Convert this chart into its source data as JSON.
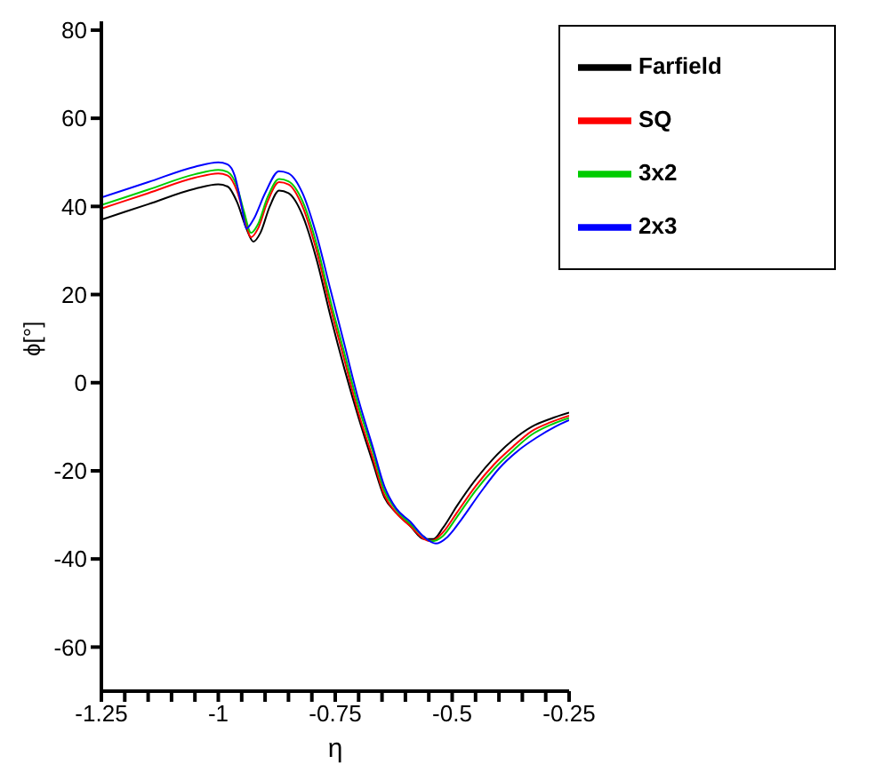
{
  "chart_data": {
    "type": "line",
    "xlabel": "η",
    "ylabel": "ϕ[°]",
    "xlim": [
      -1.25,
      -0.25
    ],
    "ylim": [
      -70,
      82
    ],
    "xticks": [
      -1.25,
      {
        "value": -1.2,
        "label": null
      },
      {
        "value": -1.15,
        "label": null
      },
      {
        "value": -1.1,
        "label": null
      },
      {
        "value": -1.05,
        "label": null
      },
      -1,
      {
        "value": -0.95,
        "label": null
      },
      {
        "value": -0.9,
        "label": null
      },
      {
        "value": -0.85,
        "label": null
      },
      {
        "value": -0.8,
        "label": null
      },
      -0.75,
      {
        "value": -0.7,
        "label": null
      },
      {
        "value": -0.65,
        "label": null
      },
      {
        "value": -0.6,
        "label": null
      },
      {
        "value": -0.55,
        "label": null
      },
      -0.5,
      {
        "value": -0.45,
        "label": null
      },
      {
        "value": -0.4,
        "label": null
      },
      {
        "value": -0.35,
        "label": null
      },
      {
        "value": -0.3,
        "label": null
      },
      -0.25
    ],
    "yticks": [
      -60,
      -40,
      -20,
      0,
      20,
      40,
      60,
      80
    ],
    "legend": "top right",
    "grid": false,
    "marker": "none",
    "line_style": "solid",
    "series": [
      {
        "name": "Farfield",
        "color": "#000000",
        "x": [
          -1.25,
          -1.15,
          -1.05,
          -1.0,
          -0.98,
          -0.96,
          -0.94,
          -0.925,
          -0.91,
          -0.89,
          -0.87,
          -0.85,
          -0.82,
          -0.79,
          -0.76,
          -0.73,
          -0.7,
          -0.67,
          -0.645,
          -0.62,
          -0.59,
          -0.56,
          -0.54,
          -0.52,
          -0.49,
          -0.45,
          -0.41,
          -0.37,
          -0.33,
          -0.29,
          -0.25
        ],
        "values": [
          37,
          40.5,
          44,
          45,
          44.5,
          41,
          35,
          32,
          34,
          40,
          43.6,
          43,
          38,
          28,
          15,
          3,
          -8,
          -18,
          -26,
          -29.5,
          -32.5,
          -35.5,
          -35.5,
          -33,
          -28,
          -22,
          -17,
          -13,
          -10,
          -8.2,
          -6.8
        ]
      },
      {
        "name": "SQ",
        "color": "#ff0000",
        "x": [
          -1.25,
          -1.15,
          -1.05,
          -1.0,
          -0.98,
          -0.96,
          -0.945,
          -0.93,
          -0.915,
          -0.895,
          -0.87,
          -0.85,
          -0.82,
          -0.79,
          -0.76,
          -0.73,
          -0.7,
          -0.67,
          -0.645,
          -0.62,
          -0.59,
          -0.56,
          -0.545,
          -0.52,
          -0.49,
          -0.45,
          -0.41,
          -0.37,
          -0.33,
          -0.29,
          -0.25
        ],
        "values": [
          39.5,
          43,
          46.5,
          47.5,
          47,
          43.5,
          38,
          33,
          35,
          41,
          45.5,
          45,
          40,
          30,
          17,
          5,
          -7,
          -17,
          -25.5,
          -29.5,
          -32.5,
          -35.5,
          -36,
          -34,
          -29.5,
          -23.5,
          -18.5,
          -14.5,
          -11,
          -9,
          -7.5
        ]
      },
      {
        "name": "3x2",
        "color": "#00cc00",
        "x": [
          -1.25,
          -1.15,
          -1.05,
          -1.0,
          -0.98,
          -0.96,
          -0.945,
          -0.93,
          -0.915,
          -0.895,
          -0.87,
          -0.85,
          -0.82,
          -0.79,
          -0.76,
          -0.73,
          -0.7,
          -0.67,
          -0.645,
          -0.62,
          -0.59,
          -0.56,
          -0.545,
          -0.52,
          -0.49,
          -0.45,
          -0.41,
          -0.37,
          -0.33,
          -0.29,
          -0.25
        ],
        "values": [
          40.3,
          43.8,
          47.3,
          48.3,
          47.8,
          44.5,
          38.8,
          34,
          36,
          42,
          46.2,
          45.7,
          41.2,
          31.5,
          18.5,
          6.5,
          -5.5,
          -15.5,
          -24.5,
          -28.8,
          -32,
          -35,
          -36,
          -34.8,
          -30.5,
          -24.5,
          -19.5,
          -15.4,
          -11.8,
          -9.6,
          -8
        ]
      },
      {
        "name": "2x3",
        "color": "#0000ff",
        "x": [
          -1.25,
          -1.15,
          -1.05,
          -1.0,
          -0.98,
          -0.965,
          -0.95,
          -0.94,
          -0.925,
          -0.9,
          -0.87,
          -0.85,
          -0.82,
          -0.79,
          -0.76,
          -0.73,
          -0.7,
          -0.67,
          -0.645,
          -0.62,
          -0.59,
          -0.56,
          -0.535,
          -0.51,
          -0.48,
          -0.44,
          -0.4,
          -0.36,
          -0.32,
          -0.28,
          -0.25
        ],
        "values": [
          42,
          45.5,
          49,
          50,
          49.5,
          47,
          40,
          35,
          37,
          43,
          48,
          47.5,
          43,
          33.5,
          21,
          8.5,
          -4,
          -14.5,
          -23.5,
          -28.5,
          -31.5,
          -35,
          -36.5,
          -35,
          -31,
          -25,
          -19.5,
          -15.5,
          -12.5,
          -10,
          -8.5
        ]
      }
    ]
  }
}
